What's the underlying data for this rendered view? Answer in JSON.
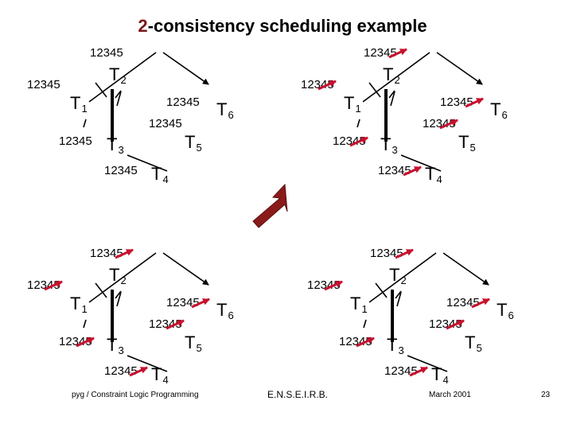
{
  "slide": {
    "title_prefix": "2",
    "title_rest": "-consistency scheduling example",
    "footer": {
      "left": "pyg  / Constraint Logic Programming",
      "center": "E.N.S.E.I.R.B.",
      "right": "March 2001",
      "page": "23"
    }
  },
  "domain_values": "12345",
  "tasks": [
    {
      "id": "T1",
      "letter": "T",
      "sub": "1"
    },
    {
      "id": "T2",
      "letter": "T",
      "sub": "2"
    },
    {
      "id": "T3",
      "letter": "T",
      "sub": "3"
    },
    {
      "id": "T4",
      "letter": "T",
      "sub": "4"
    },
    {
      "id": "T5",
      "letter": "T",
      "sub": "5"
    },
    {
      "id": "T6",
      "letter": "T",
      "sub": "6"
    }
  ],
  "colors": {
    "title_accent": "#7a1a1a",
    "strike": "#c8102e",
    "big_arrow": "#8b1a1a"
  }
}
